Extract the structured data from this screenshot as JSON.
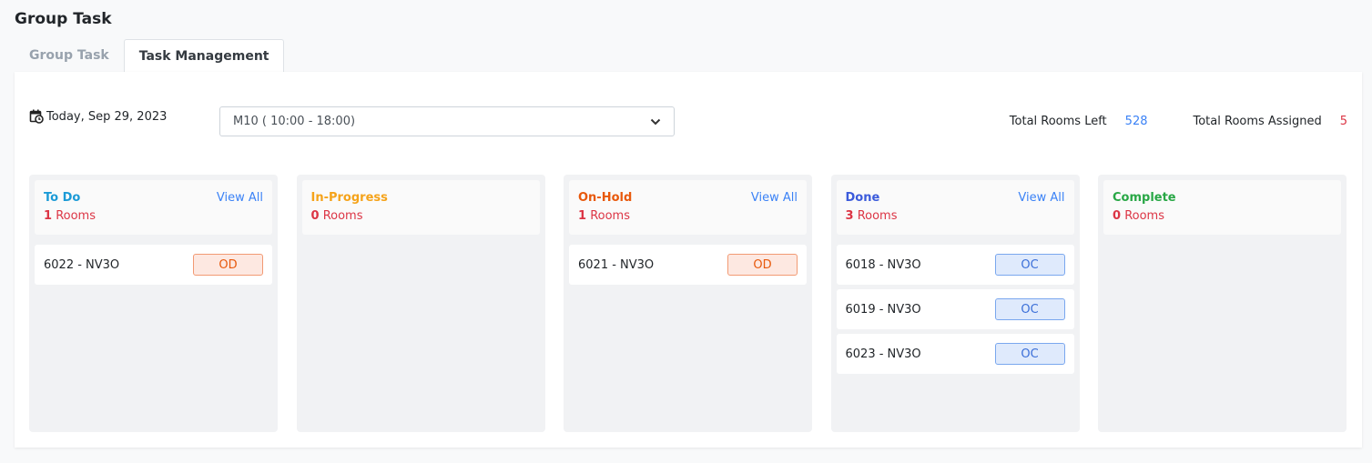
{
  "page_title": "Group Task",
  "tabs": [
    {
      "label": "Group Task",
      "active": false
    },
    {
      "label": "Task Management",
      "active": true
    }
  ],
  "date": "Today, Sep 29, 2023",
  "shift_select": "M10 ( 10:00 - 18:00)",
  "stats": {
    "rooms_left_label": "Total Rooms Left",
    "rooms_left": "528",
    "rooms_assigned_label": "Total Rooms Assigned",
    "rooms_assigned": "5"
  },
  "colors": {
    "rooms_left": "#3b82f6",
    "rooms_assigned": "#dc3545"
  },
  "columns": [
    {
      "title": "To Do",
      "color": "#1b9ad6",
      "count": "1",
      "rooms_label": "Rooms",
      "view_all": "View All",
      "cards": [
        {
          "room": "6022 - NV3O",
          "badge": "OD"
        }
      ]
    },
    {
      "title": "In-Progress",
      "color": "#f5a31a",
      "count": "0",
      "rooms_label": "Rooms",
      "view_all": "",
      "cards": []
    },
    {
      "title": "On-Hold",
      "color": "#e8590c",
      "count": "1",
      "rooms_label": "Rooms",
      "view_all": "View All",
      "cards": [
        {
          "room": "6021 - NV3O",
          "badge": "OD"
        }
      ]
    },
    {
      "title": "Done",
      "color": "#3b5bdb",
      "count": "3",
      "rooms_label": "Rooms",
      "view_all": "View All",
      "cards": [
        {
          "room": "6018 - NV3O",
          "badge": "OC"
        },
        {
          "room": "6019 - NV3O",
          "badge": "OC"
        },
        {
          "room": "6023 - NV3O",
          "badge": "OC"
        }
      ]
    },
    {
      "title": "Complete",
      "color": "#28a745",
      "count": "0",
      "rooms_label": "Rooms",
      "view_all": "",
      "cards": []
    }
  ]
}
